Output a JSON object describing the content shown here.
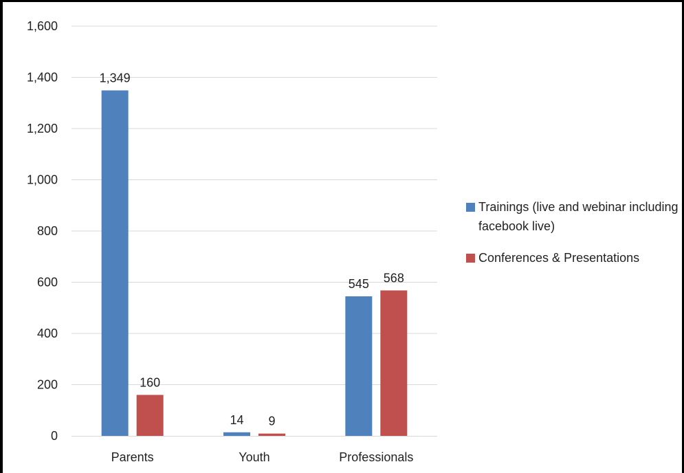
{
  "chart_data": {
    "type": "bar",
    "categories": [
      "Parents",
      "Youth",
      "Professionals"
    ],
    "series": [
      {
        "name": "Trainings (live and webinar including facebook live)",
        "values": [
          1349,
          14,
          545
        ],
        "labels": [
          "1,349",
          "14",
          "545"
        ],
        "color": "#4f81bd"
      },
      {
        "name": "Conferences & Presentations",
        "values": [
          160,
          9,
          568
        ],
        "labels": [
          "160",
          "9",
          "568"
        ],
        "color": "#c0504d"
      }
    ],
    "yticks": [
      "0",
      "200",
      "400",
      "600",
      "800",
      "1,000",
      "1,200",
      "1,400",
      "1,600"
    ],
    "ylim": [
      0,
      1600
    ],
    "grid": true,
    "legend_position": "right"
  }
}
